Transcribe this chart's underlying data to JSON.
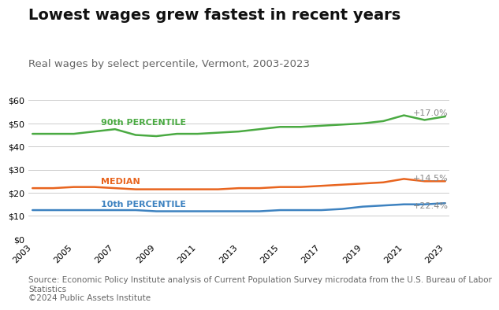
{
  "title": "Lowest wages grew fastest in recent years",
  "subtitle": "Real wages by select percentile, Vermont, 2003-2023",
  "years": [
    2003,
    2004,
    2005,
    2006,
    2007,
    2008,
    2009,
    2010,
    2011,
    2012,
    2013,
    2014,
    2015,
    2016,
    2017,
    2018,
    2019,
    2020,
    2021,
    2022,
    2023
  ],
  "p90": [
    45.5,
    45.5,
    45.5,
    46.5,
    47.5,
    45.0,
    44.5,
    45.5,
    45.5,
    46.0,
    46.5,
    47.5,
    48.5,
    48.5,
    49.0,
    49.5,
    50.0,
    51.0,
    53.5,
    51.5,
    53.0
  ],
  "median": [
    22.0,
    22.0,
    22.5,
    22.5,
    22.0,
    21.5,
    21.5,
    21.5,
    21.5,
    21.5,
    22.0,
    22.0,
    22.5,
    22.5,
    23.0,
    23.5,
    24.0,
    24.5,
    26.0,
    25.0,
    25.0
  ],
  "p10": [
    12.5,
    12.5,
    12.5,
    12.5,
    12.5,
    12.5,
    12.0,
    12.0,
    12.0,
    12.0,
    12.0,
    12.0,
    12.5,
    12.5,
    12.5,
    13.0,
    14.0,
    14.5,
    15.0,
    15.0,
    15.5
  ],
  "color_p90": "#4aaa42",
  "color_median": "#e8641e",
  "color_p10": "#3d82c0",
  "annotation_p90": "+17.0%",
  "annotation_median": "+14.5%",
  "annotation_p10": "+22.4%",
  "label_p90": "90th PERCENTILE",
  "label_median": "MEDIAN",
  "label_p10": "10th PERCENTILE",
  "ylim": [
    0,
    65
  ],
  "yticks": [
    0,
    10,
    20,
    30,
    40,
    50,
    60
  ],
  "source_text": "Source: Economic Policy Institute analysis of Current Population Survey microdata from the U.S. Bureau of Labor\nStatistics\n©2024 Public Assets Institute",
  "background_color": "#ffffff",
  "grid_color": "#cccccc",
  "title_fontsize": 14,
  "subtitle_fontsize": 9.5,
  "label_fontsize": 8,
  "annotation_fontsize": 8,
  "source_fontsize": 7.5,
  "tick_fontsize": 8
}
